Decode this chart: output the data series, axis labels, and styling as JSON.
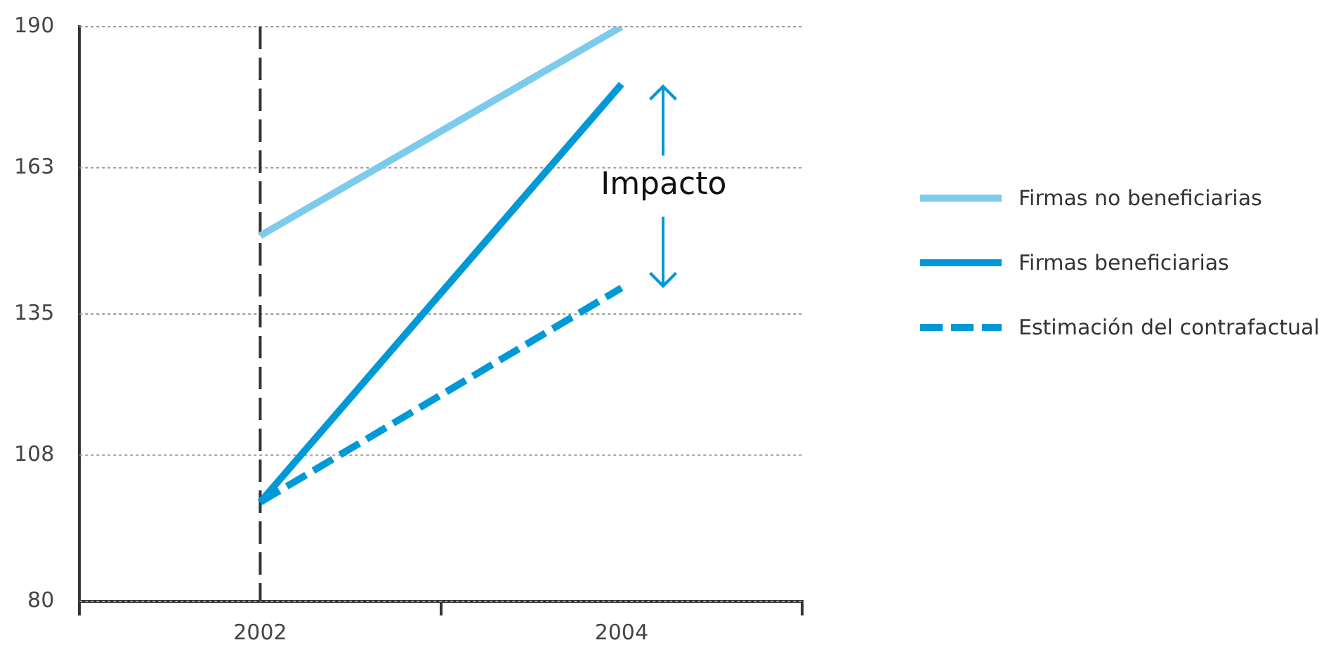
{
  "chart_data": {
    "type": "line",
    "categories": [
      "2002",
      "2004"
    ],
    "series": [
      {
        "name": "Firmas no beneficiarias",
        "color": "#7dcbec",
        "values": [
          150,
          190
        ]
      },
      {
        "name": "Firmas beneficiarias",
        "color": "#0099d8",
        "values": [
          99,
          179
        ]
      },
      {
        "name": "Estimación del contrafactual",
        "color": "#0099d8",
        "values": [
          99,
          140
        ],
        "line_style": "dashed"
      }
    ],
    "ylim": [
      80,
      190
    ],
    "yticks": [
      80,
      108,
      135,
      163,
      190
    ],
    "grid": "y",
    "legend": "right",
    "marker": "none",
    "ref_lines": [
      {
        "axis": "x",
        "value": "2002",
        "color": "#333333",
        "line_style": "dashed"
      }
    ],
    "annotations": [
      "Impacto"
    ]
  }
}
